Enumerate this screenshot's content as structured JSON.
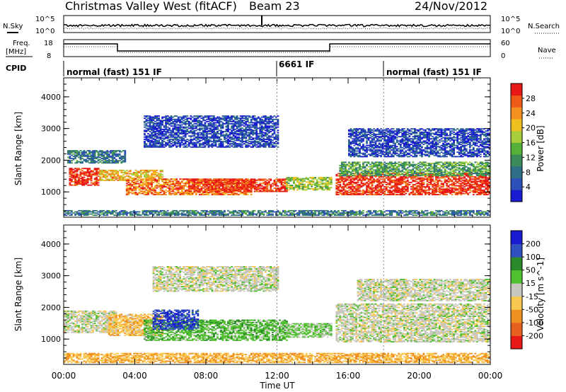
{
  "header": {
    "title": "Christmas Valley West (fitACF)",
    "beam": "Beam 23",
    "date": "24/Nov/2012"
  },
  "labels": {
    "nsky": "N.Sky",
    "nsearch": "N.Search",
    "freq_line1": "Freq.",
    "freq_line2": "[MHz]",
    "nave": "Nave",
    "cpid": "CPID",
    "x_axis": "Time UT"
  },
  "noise_panel": {
    "left_ticks": [
      "10^5",
      "10^0"
    ],
    "right_ticks": [
      "10^5",
      "10^0"
    ]
  },
  "freq_panel": {
    "left_ticks": [
      "18",
      "8"
    ],
    "right_ticks": [
      "60",
      "0"
    ]
  },
  "cpid_segments": [
    {
      "label": "normal (fast) 151 IF",
      "start_hour": 0
    },
    {
      "label": "6661 IF",
      "start_hour": 12
    },
    {
      "label": "normal (fast) 151 IF",
      "start_hour": 18
    }
  ],
  "colors": {
    "power_scale": [
      "#1a1ad0",
      "#2c4fb8",
      "#2e6e86",
      "#3a8a5a",
      "#56b03a",
      "#a8cc3a",
      "#f0c020",
      "#f49020",
      "#f05a18",
      "#e81818"
    ],
    "velocity_scale": [
      "#1a1ad0",
      "#3050c0",
      "#2a8a2a",
      "#50c030",
      "#c8c8c0",
      "#f8c850",
      "#f09020",
      "#e86020",
      "#e81818"
    ]
  },
  "chart_data": [
    {
      "type": "heatmap",
      "name": "power",
      "xlabel": "Time UT",
      "ylabel": "Slant Range [km]",
      "x_ticks": [
        "00:00",
        "04:00",
        "08:00",
        "12:00",
        "16:00",
        "20:00",
        "00:00"
      ],
      "y_ticks": [
        "1000",
        "2000",
        "3000",
        "4000"
      ],
      "xlim": [
        0,
        24
      ],
      "ylim": [
        200,
        4600
      ],
      "colorbar": {
        "label": "Power [dB]",
        "ticks": [
          "4",
          "8",
          "12",
          "16",
          "20",
          "24",
          "28"
        ],
        "range": [
          0,
          30
        ]
      },
      "bands": [
        {
          "t0": 0.3,
          "t1": 2.0,
          "r_lo": 1200,
          "r_hi": 1750,
          "level": 28
        },
        {
          "t0": 2.0,
          "t1": 5.5,
          "r_lo": 1350,
          "r_hi": 1700,
          "level": 20
        },
        {
          "t0": 3.5,
          "t1": 10.5,
          "r_lo": 900,
          "r_hi": 1400,
          "level": 24
        },
        {
          "t0": 7.0,
          "t1": 12.5,
          "r_lo": 1000,
          "r_hi": 1400,
          "level": 28
        },
        {
          "t0": 12.5,
          "t1": 15.0,
          "r_lo": 1050,
          "r_hi": 1450,
          "level": 16
        },
        {
          "t0": 15.3,
          "t1": 24.0,
          "r_lo": 900,
          "r_hi": 1600,
          "level": 28
        },
        {
          "t0": 15.5,
          "t1": 24.0,
          "r_lo": 1500,
          "r_hi": 1950,
          "level": 12
        },
        {
          "t0": 0.2,
          "t1": 3.5,
          "r_lo": 1900,
          "r_hi": 2300,
          "level": 8
        },
        {
          "t0": 4.5,
          "t1": 12.0,
          "r_lo": 2400,
          "r_hi": 3400,
          "level": 4
        },
        {
          "t0": 16.0,
          "t1": 24.0,
          "r_lo": 2100,
          "r_hi": 3000,
          "level": 4
        },
        {
          "t0": 0.0,
          "t1": 24.0,
          "r_lo": 250,
          "r_hi": 400,
          "level": 8
        }
      ]
    },
    {
      "type": "heatmap",
      "name": "velocity",
      "xlabel": "Time UT",
      "ylabel": "Slant Range [km]",
      "x_ticks": [
        "00:00",
        "04:00",
        "08:00",
        "12:00",
        "16:00",
        "20:00",
        "00:00"
      ],
      "y_ticks": [
        "1000",
        "2000",
        "3000",
        "4000"
      ],
      "xlim": [
        0,
        24
      ],
      "ylim": [
        200,
        4600
      ],
      "colorbar": {
        "label": "Velocity [m s^-1]",
        "ticks": [
          "200",
          "100",
          "50",
          "15",
          "-15",
          "-50",
          "-100",
          "-200"
        ],
        "range": [
          -250,
          250
        ]
      },
      "bands": [
        {
          "t0": 0.0,
          "t1": 3.0,
          "r_lo": 1200,
          "r_hi": 1900,
          "level": 0
        },
        {
          "t0": 2.5,
          "t1": 5.5,
          "r_lo": 1100,
          "r_hi": 1800,
          "level": -60
        },
        {
          "t0": 4.5,
          "t1": 12.5,
          "r_lo": 950,
          "r_hi": 1600,
          "level": 60
        },
        {
          "t0": 5.0,
          "t1": 7.5,
          "r_lo": 1300,
          "r_hi": 1900,
          "level": 180
        },
        {
          "t0": 12.5,
          "t1": 15.0,
          "r_lo": 1050,
          "r_hi": 1500,
          "level": 40
        },
        {
          "t0": 15.3,
          "t1": 24.0,
          "r_lo": 900,
          "r_hi": 2100,
          "level": 0
        },
        {
          "t0": 16.5,
          "t1": 24.0,
          "r_lo": 2200,
          "r_hi": 2900,
          "level": 0
        },
        {
          "t0": 0.0,
          "t1": 24.0,
          "r_lo": 250,
          "r_hi": 550,
          "level": -80
        },
        {
          "t0": 5.0,
          "t1": 12.0,
          "r_lo": 2500,
          "r_hi": 3300,
          "level": 0
        }
      ]
    }
  ]
}
